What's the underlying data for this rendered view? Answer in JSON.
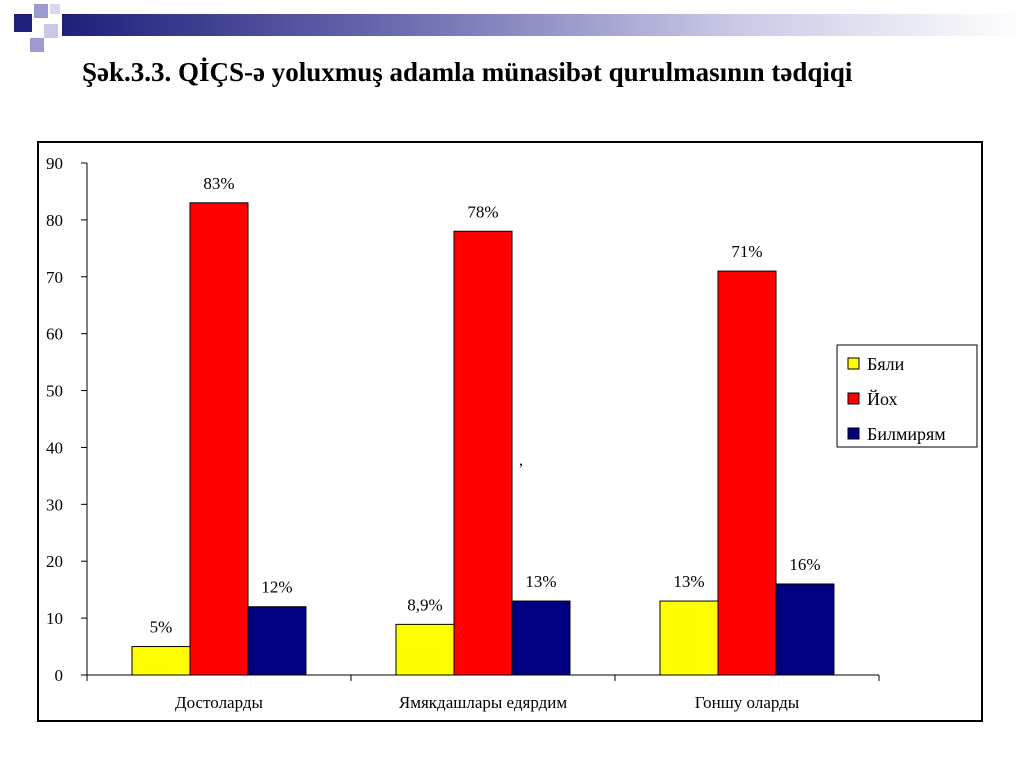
{
  "slide": {
    "title": "Şək.3.3. QİÇS-ə yoluxmuş adamla münasibət qurulmasının tədqiqi"
  },
  "colors": {
    "series_yes": "#ffff00",
    "series_no": "#ff0000",
    "series_unknown": "#000080",
    "deco_dark": "#1f1f7a",
    "deco_light": "#9c9cd0"
  },
  "chart_data": {
    "type": "bar",
    "title": "",
    "xlabel": "",
    "ylabel": "",
    "categories": [
      "Достоларды",
      "Ямякдашлары едярдим",
      "Гоншу оларды"
    ],
    "series": [
      {
        "name": "Бяли",
        "values": [
          5,
          8.9,
          13
        ],
        "labels": [
          "5%",
          "8,9%",
          "13%"
        ]
      },
      {
        "name": "Йох",
        "values": [
          83,
          78,
          71
        ],
        "labels": [
          "83%",
          "78%",
          "71%"
        ]
      },
      {
        "name": "Билмирям",
        "values": [
          12,
          13,
          16
        ],
        "labels": [
          "12%",
          "13%",
          "16%"
        ]
      }
    ],
    "ylim": [
      0,
      90
    ],
    "yticks": [
      0,
      10,
      20,
      30,
      40,
      50,
      60,
      70,
      80,
      90
    ],
    "grid": false,
    "legend_position": "right",
    "annotation": ","
  }
}
